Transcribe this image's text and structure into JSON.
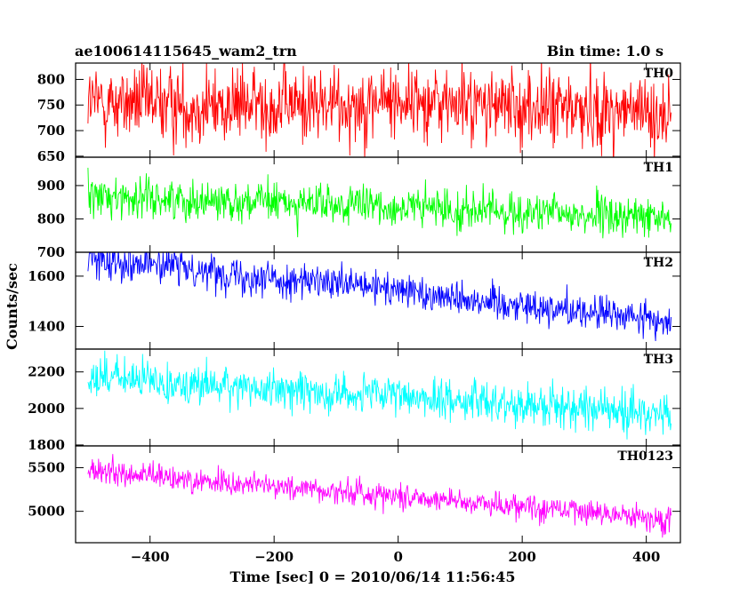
{
  "header": {
    "title": "ae100614115645_wam2_trn",
    "bin_time": "Bin time: 1.0 s"
  },
  "xlabel": "Time [sec] 0 = 2010/06/14 11:56:45",
  "ylabel": "Counts/sec",
  "chart_data": {
    "type": "line",
    "title": "ae100614115645_wam2_trn",
    "subtitle": "Bin time: 1.0 s",
    "xlabel": "Time [sec] 0 = 2010/06/14 11:56:45",
    "ylabel": "Counts/sec",
    "xlim": [
      -520,
      455
    ],
    "x_data_range": [
      -500,
      440
    ],
    "x_ticks": [
      -400,
      -200,
      0,
      200,
      400
    ],
    "bin_time_s": 1.0,
    "grid": false,
    "legend": "none",
    "panels": [
      {
        "name": "TH0",
        "color": "#ff0000",
        "ylim": [
          648,
          832
        ],
        "y_ticks": [
          650,
          700,
          750,
          800
        ],
        "trend_start": 755,
        "trend_end": 740,
        "noise": 38,
        "x": [
          -500,
          -400,
          -300,
          -200,
          -100,
          0,
          100,
          200,
          300,
          400,
          440
        ],
        "y": [
          755,
          752,
          748,
          752,
          750,
          760,
          752,
          745,
          742,
          735,
          725
        ]
      },
      {
        "name": "TH1",
        "color": "#00ff00",
        "ylim": [
          700,
          985
        ],
        "y_ticks": [
          700,
          800,
          900
        ],
        "trend_start": 870,
        "trend_end": 805,
        "noise": 30,
        "x": [
          -500,
          -400,
          -300,
          -200,
          -100,
          0,
          100,
          200,
          300,
          400,
          440
        ],
        "y": [
          870,
          862,
          855,
          850,
          840,
          835,
          828,
          818,
          812,
          805,
          800
        ]
      },
      {
        "name": "TH2",
        "color": "#0000ff",
        "ylim": [
          1310,
          1695
        ],
        "y_ticks": [
          1400,
          1600
        ],
        "trend_start": 1675,
        "trend_end": 1420,
        "noise": 35,
        "x": [
          -500,
          -400,
          -300,
          -200,
          -100,
          0,
          100,
          200,
          300,
          400,
          440
        ],
        "y": [
          1675,
          1650,
          1620,
          1590,
          1565,
          1545,
          1515,
          1485,
          1460,
          1430,
          1415
        ]
      },
      {
        "name": "TH3",
        "color": "#00ffff",
        "ylim": [
          1795,
          2325
        ],
        "y_ticks": [
          1800,
          2000,
          2200
        ],
        "trend_start": 2175,
        "trend_end": 1960,
        "noise": 55,
        "x": [
          -500,
          -400,
          -300,
          -200,
          -100,
          0,
          100,
          200,
          300,
          400,
          440
        ],
        "y": [
          2175,
          2150,
          2125,
          2105,
          2085,
          2065,
          2045,
          2025,
          2005,
          1975,
          1960
        ]
      },
      {
        "name": "TH0123",
        "color": "#ff00ff",
        "ylim": [
          4640,
          5750
        ],
        "y_ticks": [
          5000,
          5500
        ],
        "trend_start": 5460,
        "trend_end": 4890,
        "noise": 75,
        "x": [
          -500,
          -400,
          -300,
          -200,
          -100,
          0,
          100,
          200,
          300,
          400,
          440
        ],
        "y": [
          5460,
          5400,
          5340,
          5290,
          5230,
          5180,
          5120,
          5060,
          5000,
          4930,
          4890
        ]
      }
    ]
  }
}
